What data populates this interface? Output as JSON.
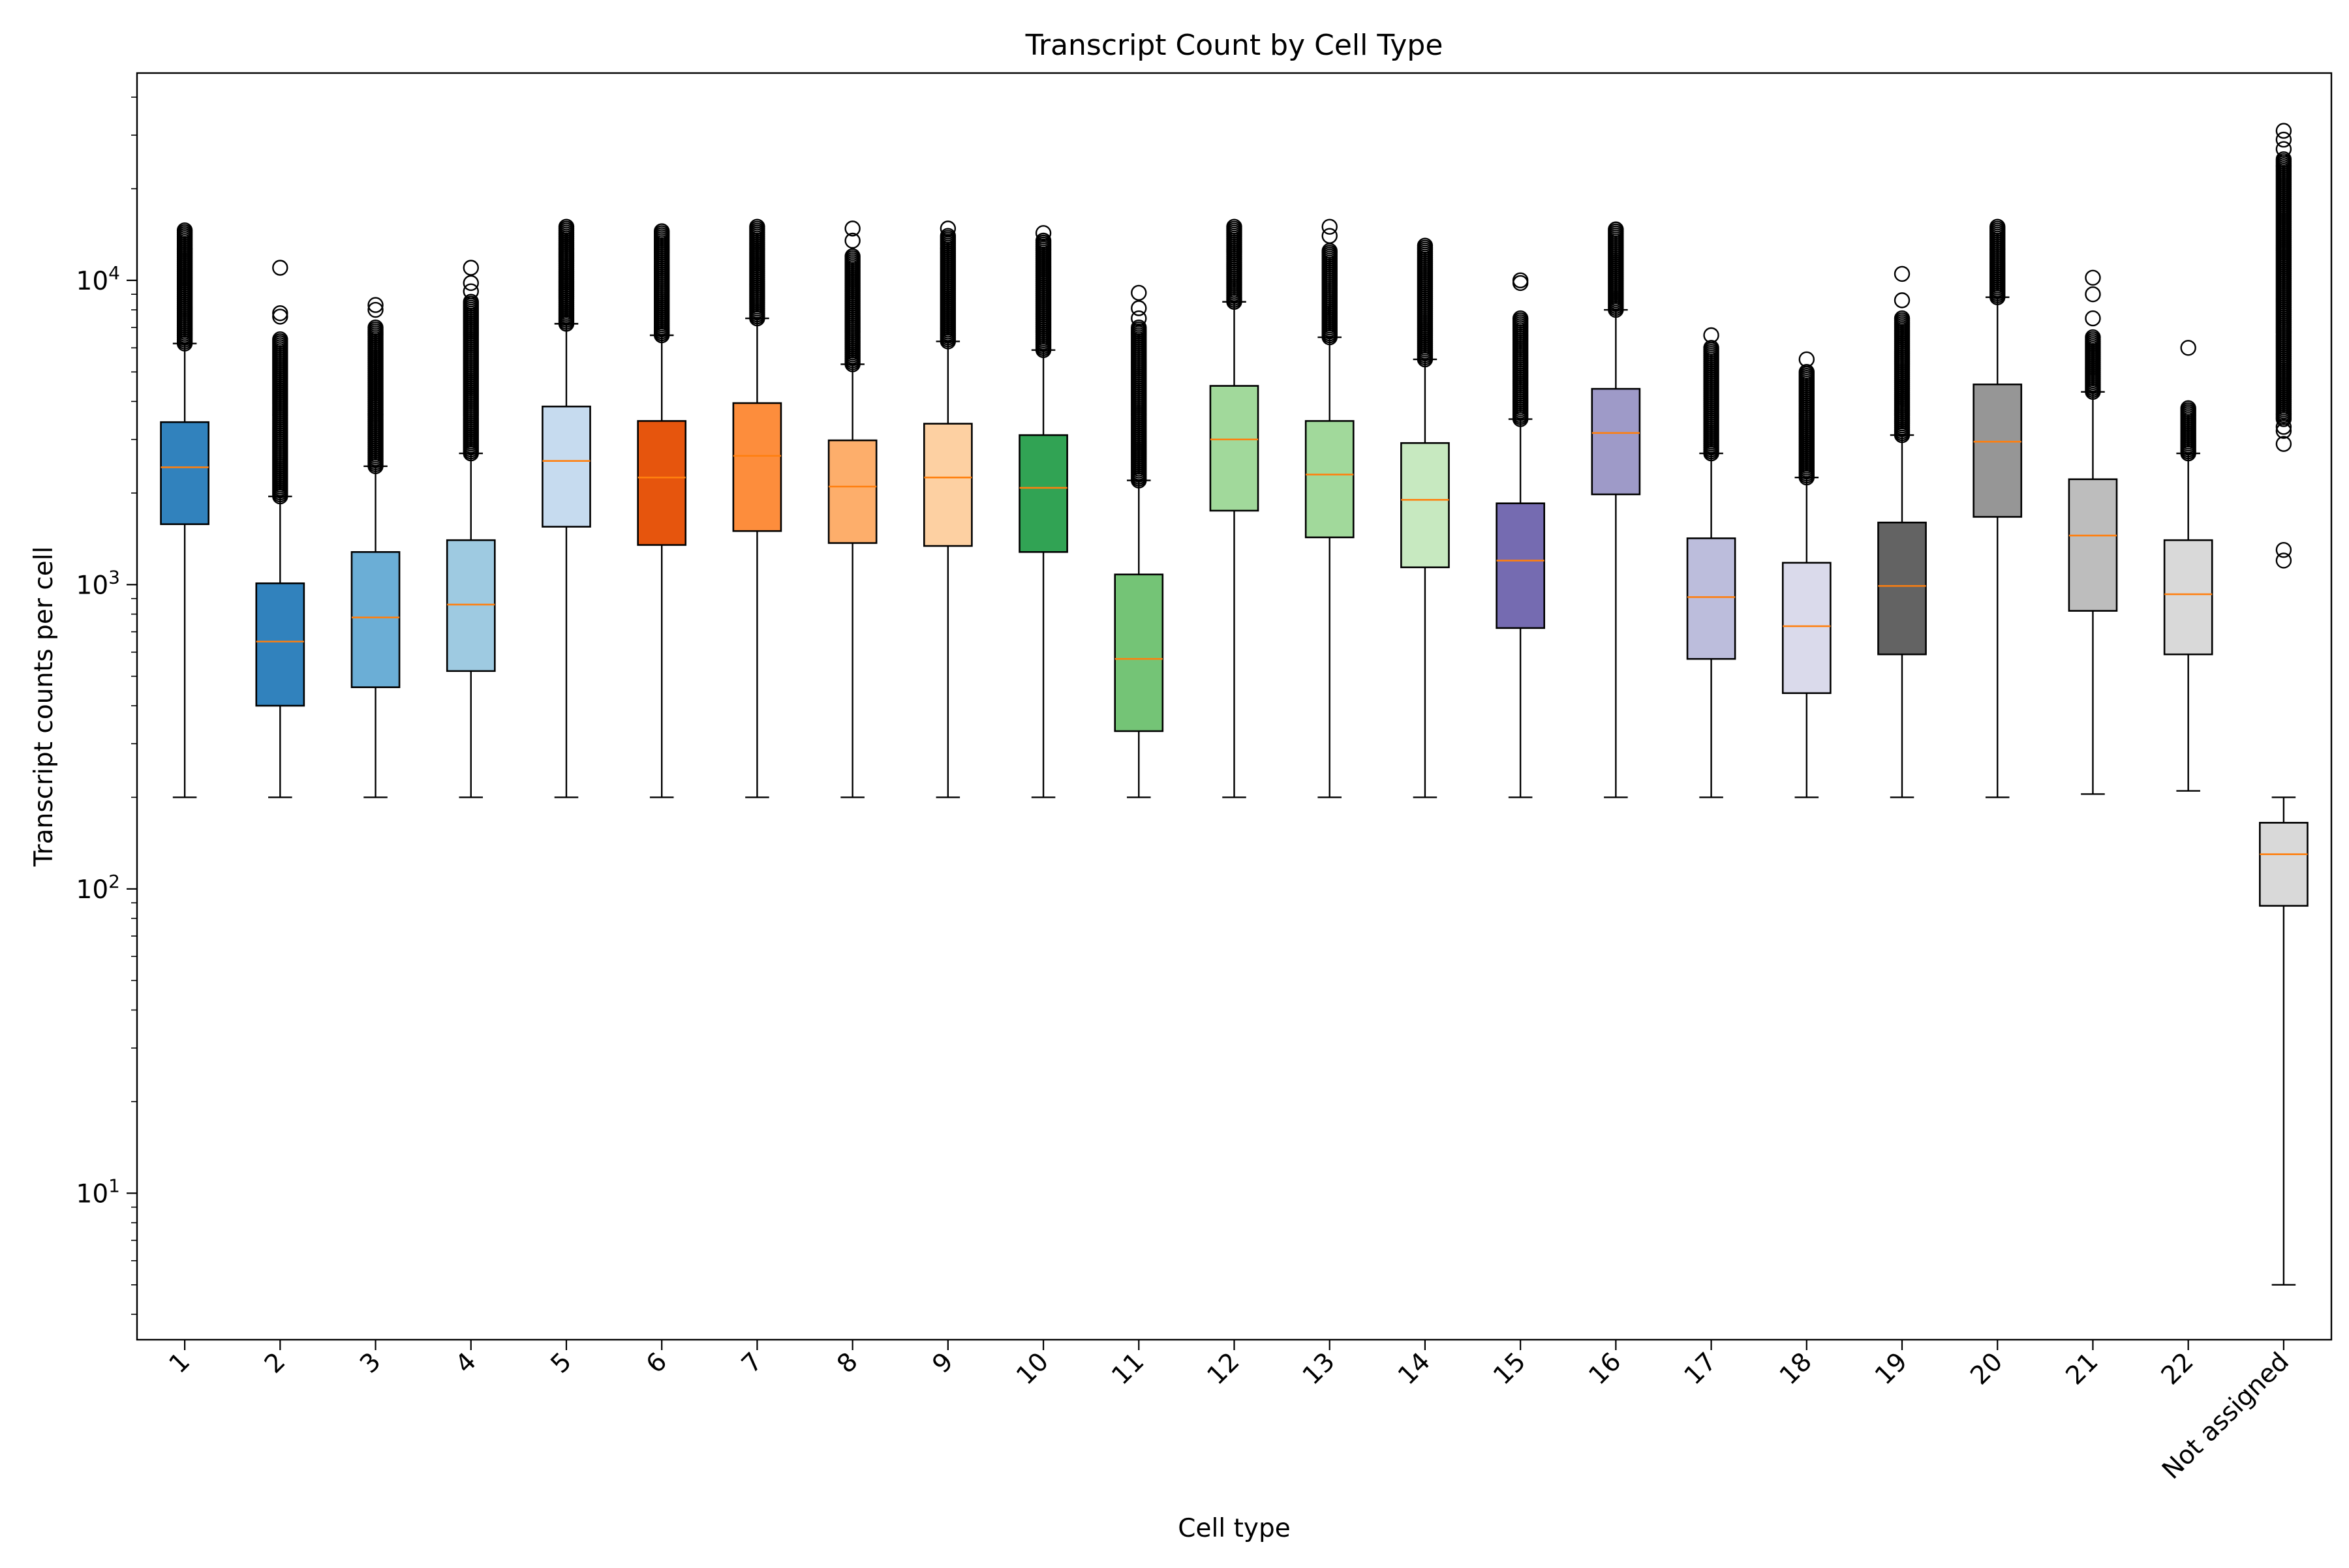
{
  "chart_data": {
    "type": "box",
    "title": "Transcript Count by Cell Type",
    "xlabel": "Cell type",
    "ylabel": "Transcript counts per cell",
    "yscale": "log",
    "ylim": [
      3.3,
      48000
    ],
    "y_major_ticks": [
      {
        "value": 10,
        "base": "10",
        "exp": "1"
      },
      {
        "value": 100,
        "base": "10",
        "exp": "2"
      },
      {
        "value": 1000,
        "base": "10",
        "exp": "3"
      },
      {
        "value": 10000,
        "base": "10",
        "exp": "4"
      }
    ],
    "grid": false,
    "median_color": "#ff7f0e",
    "categories": [
      "1",
      "2",
      "3",
      "4",
      "5",
      "6",
      "7",
      "8",
      "9",
      "10",
      "11",
      "12",
      "13",
      "14",
      "15",
      "16",
      "17",
      "18",
      "19",
      "20",
      "21",
      "22",
      "Not assigned"
    ],
    "boxes": [
      {
        "category": "1",
        "color": "#3182bd",
        "whisker_low": 200,
        "q1": 1580,
        "median": 2430,
        "q3": 3420,
        "whisker_high": 6200,
        "outliers_min": 6200,
        "outliers_max": 14600,
        "outliers_dense": true
      },
      {
        "category": "2",
        "color": "#3182bd",
        "whisker_low": 200,
        "q1": 400,
        "median": 650,
        "q3": 1010,
        "whisker_high": 1950,
        "outliers_min": 1950,
        "outliers_max": 6400,
        "outliers_dense": true,
        "outliers_extra": [
          7600,
          7800,
          11000
        ]
      },
      {
        "category": "3",
        "color": "#6baed6",
        "whisker_low": 200,
        "q1": 460,
        "median": 780,
        "q3": 1280,
        "whisker_high": 2450,
        "outliers_min": 2450,
        "outliers_max": 7000,
        "outliers_dense": true,
        "outliers_extra": [
          8000,
          8300
        ]
      },
      {
        "category": "4",
        "color": "#9ecae1",
        "whisker_low": 200,
        "q1": 520,
        "median": 860,
        "q3": 1400,
        "whisker_high": 2700,
        "outliers_min": 2700,
        "outliers_max": 8500,
        "outliers_dense": true,
        "outliers_extra": [
          9200,
          9800,
          11000
        ]
      },
      {
        "category": "5",
        "color": "#c6dbef",
        "whisker_low": 200,
        "q1": 1550,
        "median": 2550,
        "q3": 3850,
        "whisker_high": 7200,
        "outliers_min": 7200,
        "outliers_max": 15000,
        "outliers_dense": true
      },
      {
        "category": "6",
        "color": "#e6550d",
        "whisker_low": 200,
        "q1": 1350,
        "median": 2250,
        "q3": 3450,
        "whisker_high": 6600,
        "outliers_min": 6600,
        "outliers_max": 14500,
        "outliers_dense": true
      },
      {
        "category": "7",
        "color": "#fd8d3c",
        "whisker_low": 200,
        "q1": 1500,
        "median": 2650,
        "q3": 3950,
        "whisker_high": 7500,
        "outliers_min": 7500,
        "outliers_max": 15000,
        "outliers_dense": true
      },
      {
        "category": "8",
        "color": "#fdae6b",
        "whisker_low": 200,
        "q1": 1370,
        "median": 2100,
        "q3": 2980,
        "whisker_high": 5300,
        "outliers_min": 5300,
        "outliers_max": 12000,
        "outliers_dense": true,
        "outliers_extra": [
          13500,
          14800
        ]
      },
      {
        "category": "9",
        "color": "#fdd0a2",
        "whisker_low": 200,
        "q1": 1340,
        "median": 2250,
        "q3": 3380,
        "whisker_high": 6300,
        "outliers_min": 6300,
        "outliers_max": 14000,
        "outliers_dense": true,
        "outliers_extra": [
          14800
        ]
      },
      {
        "category": "10",
        "color": "#31a354",
        "whisker_low": 200,
        "q1": 1280,
        "median": 2080,
        "q3": 3100,
        "whisker_high": 5900,
        "outliers_min": 5900,
        "outliers_max": 13500,
        "outliers_dense": true,
        "outliers_extra": [
          14300
        ]
      },
      {
        "category": "11",
        "color": "#74c476",
        "whisker_low": 200,
        "q1": 330,
        "median": 570,
        "q3": 1080,
        "whisker_high": 2200,
        "outliers_min": 2200,
        "outliers_max": 7000,
        "outliers_dense": true,
        "outliers_extra": [
          7500,
          8100,
          9100
        ]
      },
      {
        "category": "12",
        "color": "#a1d99b",
        "whisker_low": 200,
        "q1": 1750,
        "median": 3000,
        "q3": 4500,
        "whisker_high": 8500,
        "outliers_min": 8500,
        "outliers_max": 15000,
        "outliers_dense": true
      },
      {
        "category": "13",
        "color": "#a1d99b",
        "whisker_low": 200,
        "q1": 1430,
        "median": 2300,
        "q3": 3450,
        "whisker_high": 6500,
        "outliers_min": 6500,
        "outliers_max": 12500,
        "outliers_dense": true,
        "outliers_extra": [
          14000,
          15000
        ]
      },
      {
        "category": "14",
        "color": "#c7e9c0",
        "whisker_low": 200,
        "q1": 1140,
        "median": 1900,
        "q3": 2920,
        "whisker_high": 5500,
        "outliers_min": 5500,
        "outliers_max": 13000,
        "outliers_dense": true
      },
      {
        "category": "15",
        "color": "#756bb1",
        "whisker_low": 200,
        "q1": 720,
        "median": 1200,
        "q3": 1850,
        "whisker_high": 3500,
        "outliers_min": 3500,
        "outliers_max": 7500,
        "outliers_dense": true,
        "outliers_extra": [
          9800,
          10000
        ]
      },
      {
        "category": "16",
        "color": "#9e9ac8",
        "whisker_low": 200,
        "q1": 1980,
        "median": 3150,
        "q3": 4400,
        "whisker_high": 8000,
        "outliers_min": 8000,
        "outliers_max": 14700,
        "outliers_dense": true
      },
      {
        "category": "17",
        "color": "#bcbddc",
        "whisker_low": 200,
        "q1": 570,
        "median": 910,
        "q3": 1420,
        "whisker_high": 2700,
        "outliers_min": 2700,
        "outliers_max": 6000,
        "outliers_dense": true,
        "outliers_extra": [
          6600
        ]
      },
      {
        "category": "18",
        "color": "#dadaeb",
        "whisker_low": 200,
        "q1": 440,
        "median": 730,
        "q3": 1180,
        "whisker_high": 2250,
        "outliers_min": 2250,
        "outliers_max": 5000,
        "outliers_dense": true,
        "outliers_extra": [
          5500
        ]
      },
      {
        "category": "19",
        "color": "#636363",
        "whisker_low": 200,
        "q1": 590,
        "median": 990,
        "q3": 1600,
        "whisker_high": 3100,
        "outliers_min": 3100,
        "outliers_max": 7500,
        "outliers_dense": true,
        "outliers_extra": [
          8600,
          10500
        ]
      },
      {
        "category": "20",
        "color": "#969696",
        "whisker_low": 200,
        "q1": 1670,
        "median": 2950,
        "q3": 4550,
        "whisker_high": 8800,
        "outliers_min": 8800,
        "outliers_max": 15000,
        "outliers_dense": true
      },
      {
        "category": "21",
        "color": "#bdbdbd",
        "whisker_low": 205,
        "q1": 820,
        "median": 1450,
        "q3": 2220,
        "whisker_high": 4300,
        "outliers_min": 4300,
        "outliers_max": 6500,
        "outliers_dense": true,
        "outliers_extra": [
          7500,
          9000,
          10200
        ]
      },
      {
        "category": "22",
        "color": "#d9d9d9",
        "whisker_low": 210,
        "q1": 590,
        "median": 930,
        "q3": 1400,
        "whisker_high": 2700,
        "outliers_min": 2700,
        "outliers_max": 3800,
        "outliers_dense": true,
        "outliers_extra": [
          6000
        ]
      },
      {
        "category": "Not assigned",
        "color": "#d9d9d9",
        "whisker_low": 5,
        "q1": 88,
        "median": 130,
        "q3": 165,
        "whisker_high": 200,
        "outliers_min": 3500,
        "outliers_max": 25000,
        "outliers_dense": true,
        "outliers_extra": [
          1200,
          1300,
          2900,
          3200,
          3300,
          27000,
          29000,
          31000
        ]
      }
    ]
  }
}
